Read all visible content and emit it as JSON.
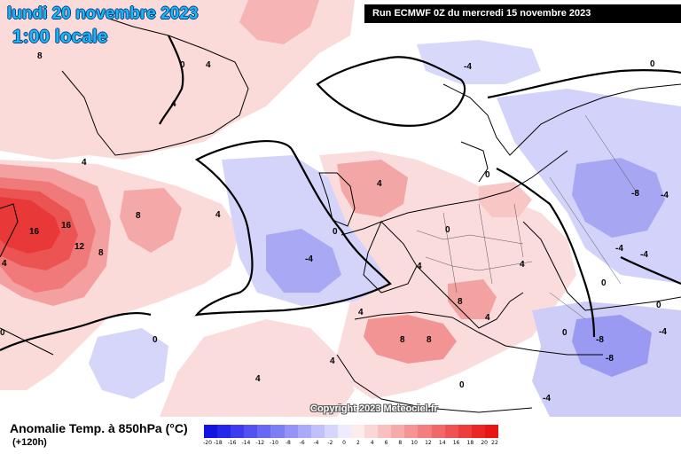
{
  "header": {
    "date": "lundi 20 novembre 2023",
    "time": "1:00 locale",
    "run": "Run ECMWF 0Z du mercredi 15 novembre 2023"
  },
  "footer": {
    "variable": "Anomalie Temp. à 850hPa (°C)",
    "lead_time": "(+120h)",
    "copyright": "Copyright 2023 Meteociel.fr"
  },
  "legend": {
    "ticks": [
      "-20",
      "-18",
      "-16",
      "-14",
      "-12",
      "-10",
      "-8",
      "-6",
      "-4",
      "-2",
      "0",
      "2",
      "4",
      "6",
      "8",
      "10",
      "12",
      "14",
      "16",
      "18",
      "20",
      "22"
    ],
    "colors": [
      "#1414e0",
      "#2626e8",
      "#3c3cee",
      "#5252f0",
      "#6868f2",
      "#7e7ef4",
      "#9494f6",
      "#aaaaf8",
      "#c0c0fa",
      "#d6d6fc",
      "#ececfe",
      "#fdecec",
      "#fbd6d6",
      "#f9c0c0",
      "#f7aaaa",
      "#f59494",
      "#f37e7e",
      "#f16868",
      "#ef5252",
      "#ed3c3c",
      "#eb2626",
      "#e91414"
    ]
  },
  "map_labels": [
    {
      "id": "gl-8",
      "text": "8"
    },
    {
      "id": "gl-0",
      "text": "0"
    },
    {
      "id": "gl-4a",
      "text": "4"
    },
    {
      "id": "gl-4b",
      "text": "4"
    },
    {
      "id": "cw-16a",
      "text": "16"
    },
    {
      "id": "cw-16b",
      "text": "16"
    },
    {
      "id": "cw-12",
      "text": "12"
    },
    {
      "id": "cw-8a",
      "text": "8"
    },
    {
      "id": "cw-8b",
      "text": "8"
    },
    {
      "id": "cw-4a",
      "text": "4"
    },
    {
      "id": "cw-4b",
      "text": "4"
    },
    {
      "id": "cw-0",
      "text": "0"
    },
    {
      "id": "cw-4c",
      "text": "4"
    },
    {
      "id": "atl-0",
      "text": "0"
    },
    {
      "id": "atl-4neg",
      "text": "-4"
    },
    {
      "id": "atl-0b",
      "text": "0"
    },
    {
      "id": "atl-4",
      "text": "4"
    },
    {
      "id": "atl-4b",
      "text": "4"
    },
    {
      "id": "atl-4c",
      "text": "4"
    },
    {
      "id": "nor-4neg",
      "text": "-4"
    },
    {
      "id": "nor-0a",
      "text": "0"
    },
    {
      "id": "nor-0b",
      "text": "0"
    },
    {
      "id": "nor-0c",
      "text": "0"
    },
    {
      "id": "eu-4a",
      "text": "4"
    },
    {
      "id": "eu-0a",
      "text": "0"
    },
    {
      "id": "eu-8a",
      "text": "8"
    },
    {
      "id": "eu-4b",
      "text": "4"
    },
    {
      "id": "eu-8b",
      "text": "8"
    },
    {
      "id": "eu-8c",
      "text": "8"
    },
    {
      "id": "eu-4c",
      "text": "4"
    },
    {
      "id": "ru-8neg",
      "text": "-8"
    },
    {
      "id": "ru-4neg",
      "text": "-4"
    },
    {
      "id": "ru-4neg2",
      "text": "-4"
    },
    {
      "id": "ru-4neg3",
      "text": "-4"
    },
    {
      "id": "ru-0",
      "text": "0"
    },
    {
      "id": "tr-8neg",
      "text": "-8"
    },
    {
      "id": "tr-8neg2",
      "text": "-8"
    },
    {
      "id": "tr-4neg",
      "text": "-4"
    },
    {
      "id": "tr-4neg2",
      "text": "-4"
    },
    {
      "id": "tr-0",
      "text": "0"
    },
    {
      "id": "tr-0b",
      "text": "0"
    },
    {
      "id": "af-4",
      "text": "4"
    }
  ]
}
